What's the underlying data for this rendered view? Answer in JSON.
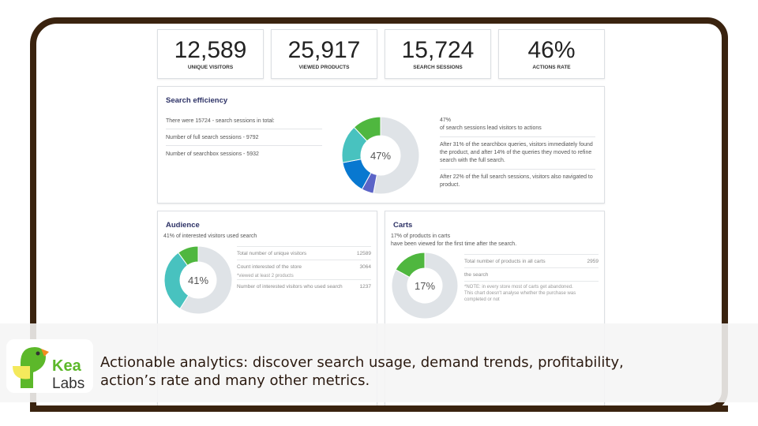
{
  "stats": [
    {
      "value": "12,589",
      "label": "UNIQUE VISITORS"
    },
    {
      "value": "25,917",
      "label": "VIEWED PRODUCTS"
    },
    {
      "value": "15,724",
      "label": "SEARCH SESSIONS"
    },
    {
      "value": "46%",
      "label": "ACTIONS RATE"
    }
  ],
  "search_efficiency": {
    "title": "Search efficiency",
    "left": [
      "There were 15724 - search sessions in total:",
      "Number of full search sessions - 9792",
      "Number of searchbox sessions - 5932"
    ],
    "center": "47%",
    "right": [
      "47%",
      "of search sessions lead visitors to actions",
      "After 31% of the searchbox queries, visitors immediately found the product, and after 14% of the queries they moved to refine search with the full search.",
      "After 22% of the full search sessions, visitors also navigated to product."
    ],
    "segments": [
      {
        "value": 53,
        "color": "#dfe3e7"
      },
      {
        "value": 5,
        "color": "#5b64c7"
      },
      {
        "value": 14,
        "color": "#0878d0"
      },
      {
        "value": 16,
        "color": "#48c2bf"
      },
      {
        "value": 12,
        "color": "#4fb73f"
      }
    ]
  },
  "audience": {
    "title": "Audience",
    "subtitle": "41% of interested visitors used search",
    "center": "41%",
    "segments": [
      {
        "value": 59,
        "color": "#dfe3e7"
      },
      {
        "value": 31,
        "color": "#48c2bf"
      },
      {
        "value": 10,
        "color": "#4fb73f"
      }
    ],
    "rows": [
      {
        "label": "Total number of unique visitors",
        "value": "12589"
      },
      {
        "label": "Count interested of the store",
        "value": "3064"
      },
      {
        "label": "Number of interested visitors who used search",
        "value": "1237"
      }
    ],
    "note": "*viewed at least 2 products"
  },
  "carts": {
    "title": "Carts",
    "subtitle": "17% of products in carts",
    "subtitle2": "have been viewed for the first time after the search.",
    "center": "17%",
    "segments": [
      {
        "value": 83,
        "color": "#dfe3e7"
      },
      {
        "value": 17,
        "color": "#4fb73f"
      }
    ],
    "rows": [
      {
        "label": "Total number of products in all carts",
        "value": "2959"
      }
    ],
    "partial": "the search",
    "note1": "*NOTE: in every store most of carts get abandoned.",
    "note2": "This chart doesn't analyse whether the purchase was completed or not"
  },
  "brand": {
    "name1": "Kea",
    "name2": "Labs"
  },
  "tagline": {
    "line1": "Actionable analytics: discover search usage, demand trends, profitability,",
    "line2": "action’s rate and many other metrics."
  }
}
